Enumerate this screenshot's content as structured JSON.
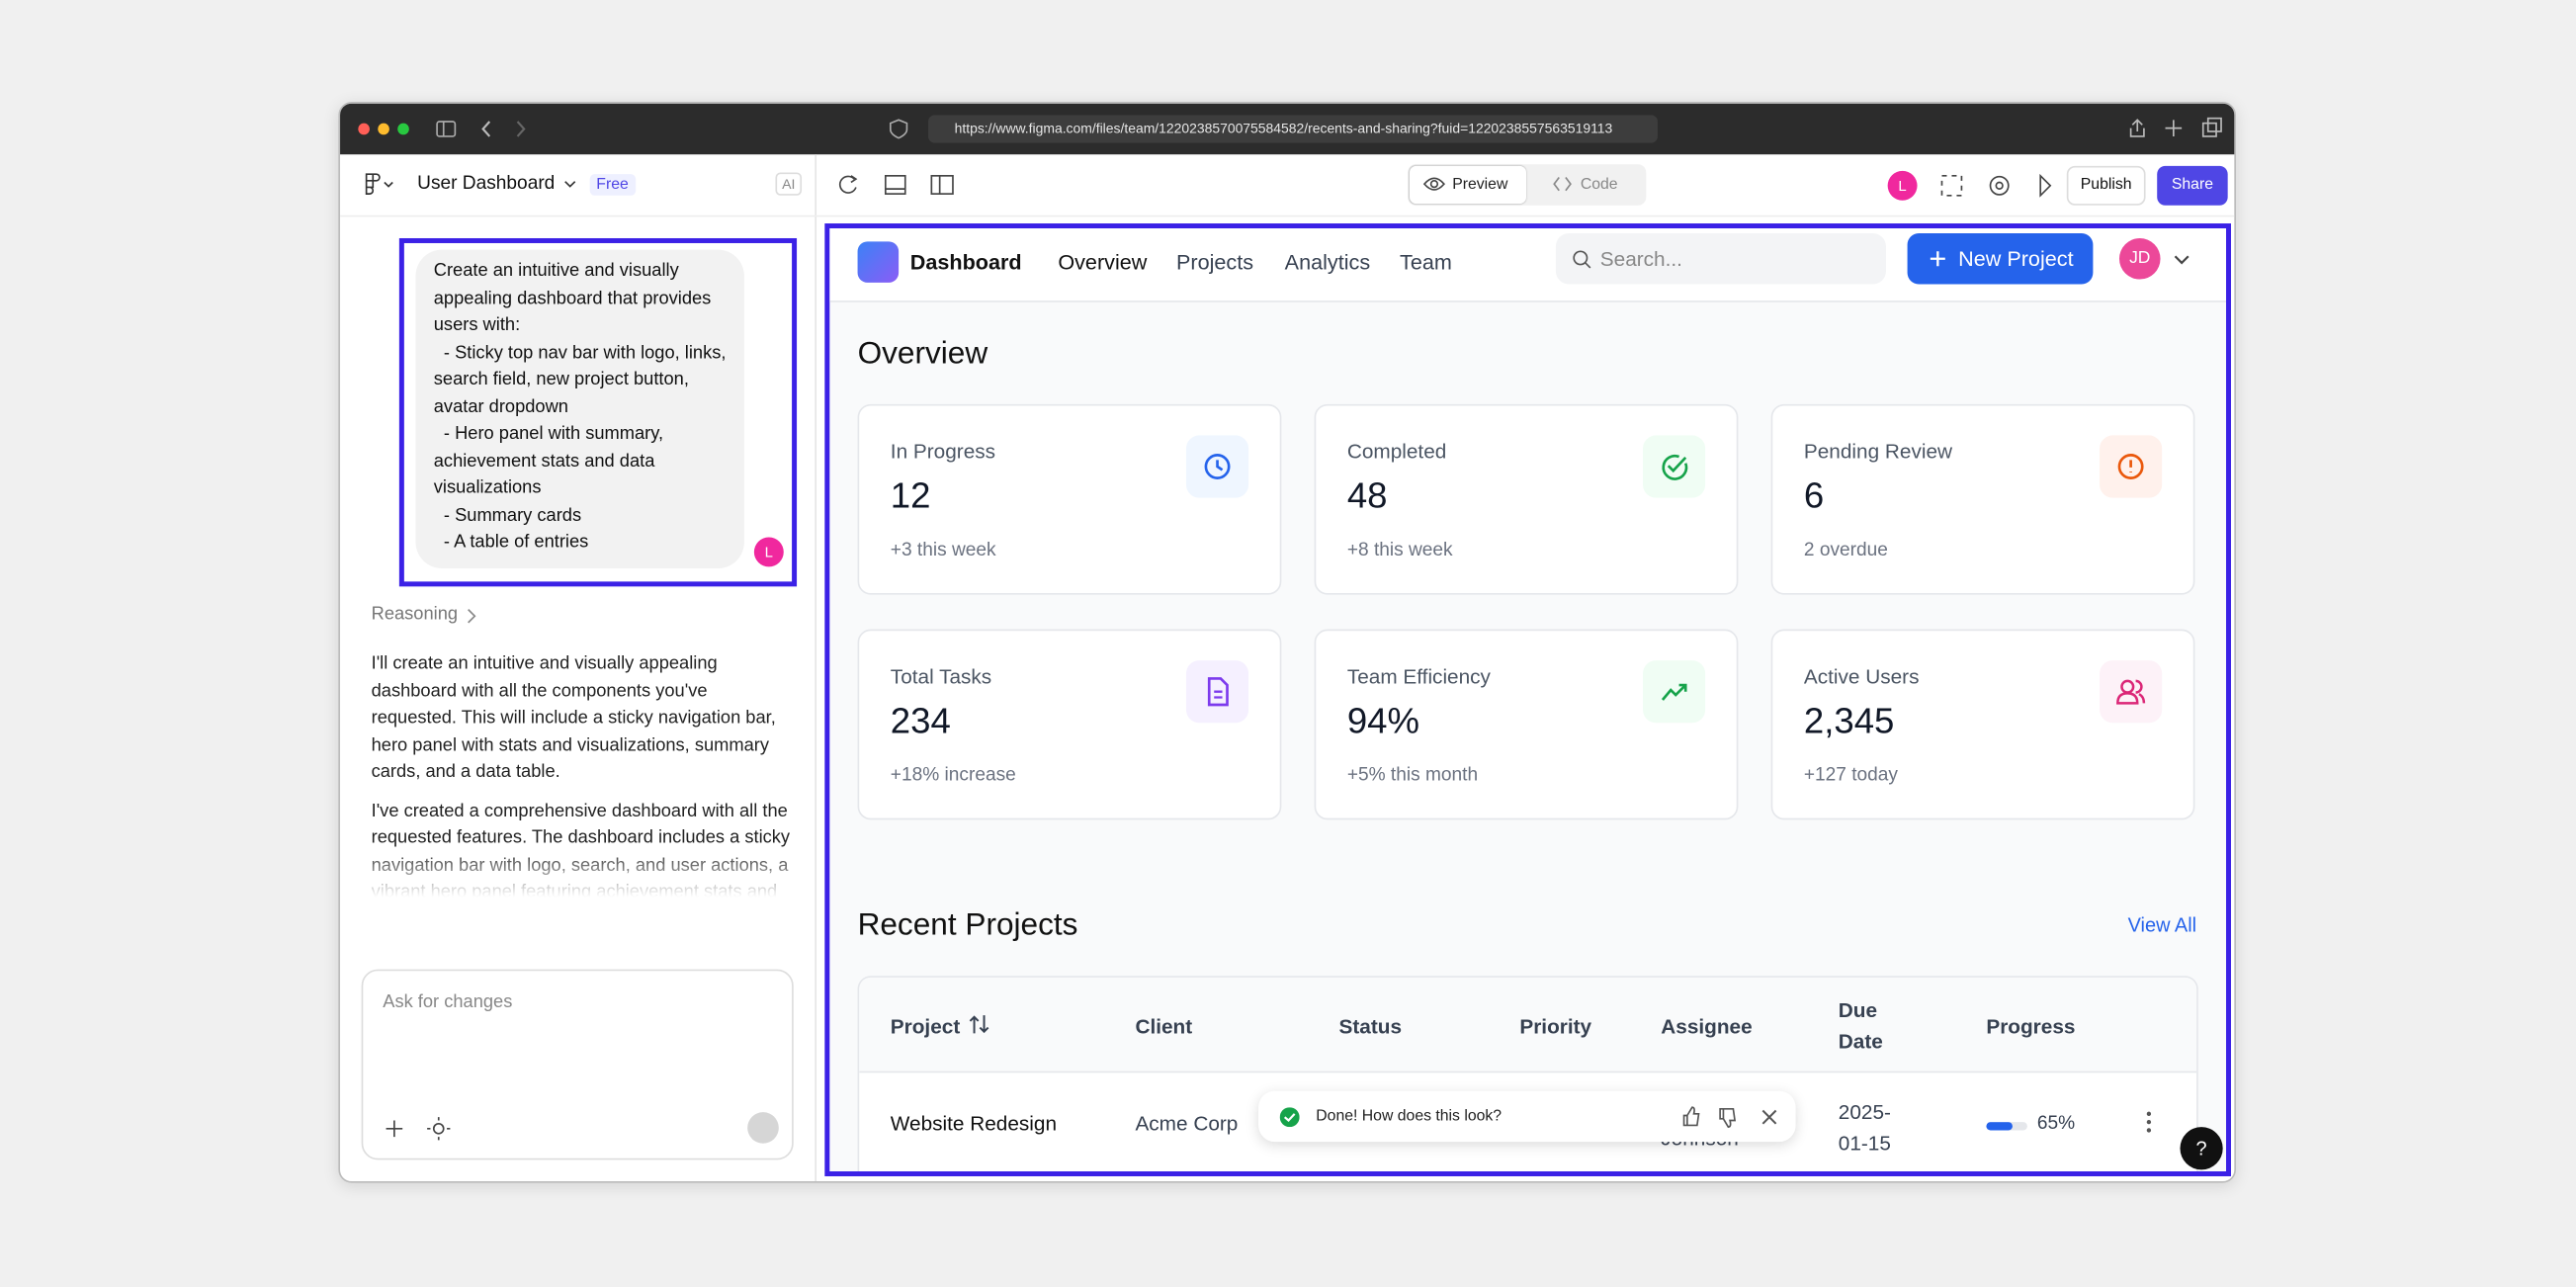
{
  "browser": {
    "url": "https://www.figma.com/files/team/1220238570075584582/recents-and-sharing?fuid=1220238557563519113"
  },
  "sidebar": {
    "project": "User Dashboard",
    "plan": "Free",
    "ai": "AI",
    "user_initial": "L",
    "prompt_lines": [
      "Create an intuitive and visually",
      "appealing dashboard that provides",
      "users with:",
      "  - Sticky top nav bar with logo, links,",
      "search field, new project button,",
      "avatar dropdown",
      "  - Hero panel with summary,",
      "achievement stats and data",
      "visualizations",
      "  - Summary cards",
      "  - A table of entries"
    ],
    "reasoning": "Reasoning",
    "responses": [
      "I'll create an intuitive and visually appealing dashboard with all the components you've requested. This will include a sticky navigation bar, hero panel with stats and visualizations, summary cards, and a data table.",
      "I've created a comprehensive dashboard with all the requested features. The dashboard includes a sticky navigation bar with logo, search, and user actions, a vibrant hero panel featuring achievement stats and interactive charts showing revenue and project activity, six summary cards displaying key"
    ],
    "input_placeholder": "Ask for changes"
  },
  "toolbar": {
    "preview": "Preview",
    "code": "Code",
    "user_initial": "L",
    "publish": "Publish",
    "share": "Share"
  },
  "dashboard": {
    "brand": "Dashboard",
    "nav": [
      "Overview",
      "Projects",
      "Analytics",
      "Team"
    ],
    "search_placeholder": "Search...",
    "new_project": "New Project",
    "avatar": "JD",
    "heading": "Overview",
    "cards": [
      {
        "title": "In Progress",
        "value": "12",
        "note": "+3 this week"
      },
      {
        "title": "Completed",
        "value": "48",
        "note": "+8 this week"
      },
      {
        "title": "Pending Review",
        "value": "6",
        "note": "2 overdue"
      },
      {
        "title": "Total Tasks",
        "value": "234",
        "note": "+18% increase"
      },
      {
        "title": "Team Efficiency",
        "value": "94%",
        "note": "+5% this month"
      },
      {
        "title": "Active Users",
        "value": "2,345",
        "note": "+127 today"
      }
    ],
    "projects_heading": "Recent Projects",
    "view_all": "View All",
    "table": {
      "headers": [
        "Project",
        "Client",
        "Status",
        "Priority",
        "Assignee",
        "Due Date",
        "Progress"
      ],
      "rows": [
        {
          "project": "Website Redesign",
          "client": "Acme Corp",
          "assignee": "Johnson",
          "due": "2025-01-15",
          "progress": "65%"
        }
      ]
    }
  },
  "toast": {
    "message": "Done! How does this look?"
  },
  "help": "?"
}
